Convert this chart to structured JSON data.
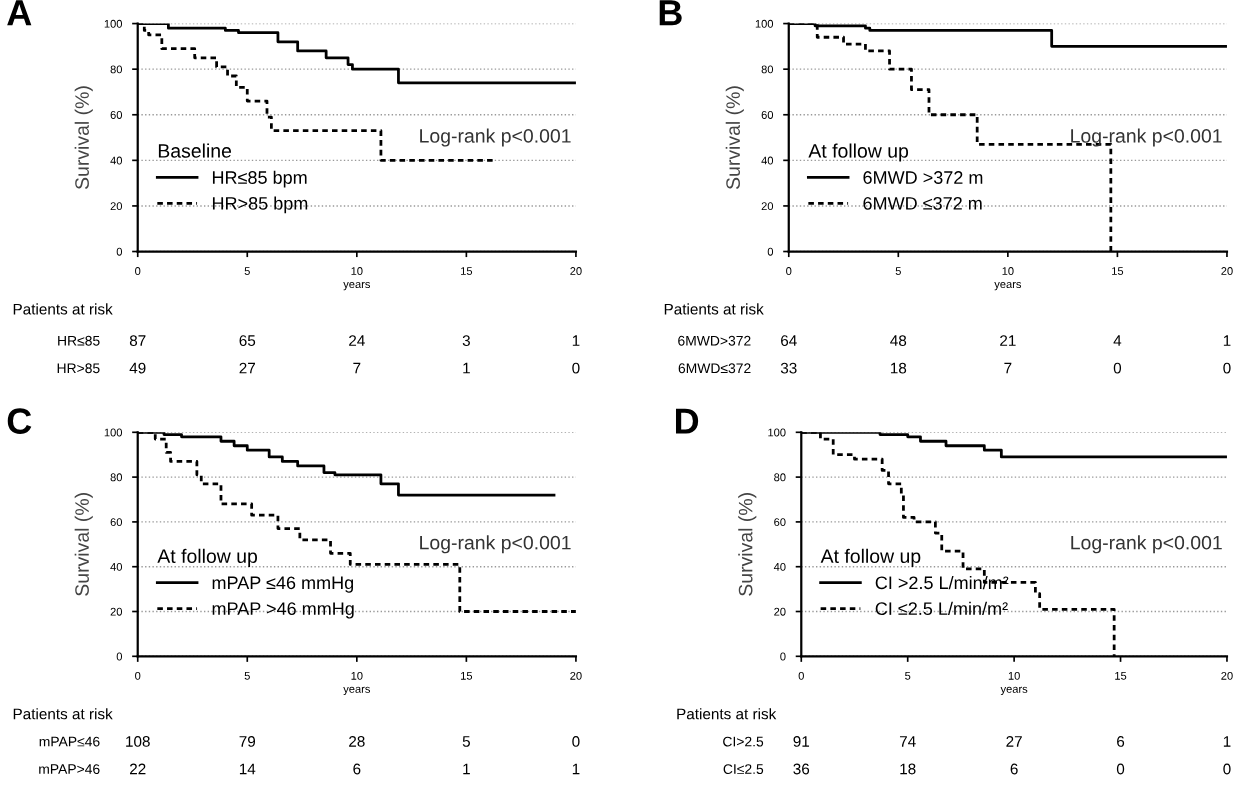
{
  "chart_data": [
    {
      "type": "step",
      "title": "A",
      "xlabel": "years",
      "ylabel": "Survival (%)",
      "legend_title": "Baseline",
      "legend": "bottom left",
      "grid": "y",
      "xlim": [
        0,
        20
      ],
      "xticks": [
        0,
        5,
        10,
        15,
        20
      ],
      "ylim": [
        0,
        100
      ],
      "yticks": [
        0,
        20,
        40,
        60,
        80,
        100
      ],
      "series": [
        {
          "name": "HR≤85 bpm",
          "color": "#000000",
          "line_style": "solid",
          "x": [
            0,
            1.4,
            4.0,
            4.6,
            6.4,
            7.3,
            8.6,
            9.6,
            9.8,
            11.9,
            20
          ],
          "values": [
            100,
            98,
            97,
            96,
            92,
            88,
            85,
            82,
            80,
            74,
            74
          ]
        },
        {
          "name": "HR>85 bpm",
          "color": "#000000",
          "line_style": "dashed",
          "x": [
            0,
            0.3,
            0.5,
            1.1,
            2.6,
            3.6,
            4.1,
            4.5,
            5.0,
            5.9,
            6.1,
            11.1,
            16.3
          ],
          "values": [
            100,
            97,
            95,
            89,
            85,
            81,
            77,
            72,
            66,
            59,
            53,
            40,
            40
          ]
        }
      ],
      "annotations": [
        "Log-rank p<0.001",
        "Patients at risk",
        "HR≤85",
        "87",
        "65",
        "24",
        "3",
        "1",
        "HR>85",
        "49",
        "27",
        "7",
        "1",
        "0"
      ]
    },
    {
      "type": "step",
      "title": "B",
      "xlabel": "years",
      "ylabel": "Survival (%)",
      "legend_title": "At follow up",
      "legend": "bottom left",
      "grid": "y",
      "xlim": [
        0,
        20
      ],
      "xticks": [
        0,
        5,
        10,
        15,
        20
      ],
      "ylim": [
        0,
        100
      ],
      "yticks": [
        0,
        20,
        40,
        60,
        80,
        100
      ],
      "series": [
        {
          "name": "6MWD >372 m",
          "color": "#000000",
          "line_style": "solid",
          "x": [
            0,
            1.2,
            3.5,
            3.7,
            12.0,
            20
          ],
          "values": [
            100,
            99,
            98,
            97,
            90,
            90
          ]
        },
        {
          "name": "6MWD ≤372 m",
          "color": "#000000",
          "line_style": "dashed",
          "x": [
            0,
            1.3,
            2.5,
            3.5,
            4.6,
            5.6,
            6.4,
            8.6,
            14.7
          ],
          "values": [
            100,
            94,
            91,
            88,
            80,
            71,
            60,
            47,
            0
          ]
        }
      ],
      "annotations": [
        "Log-rank p<0.001",
        "Patients at risk",
        "6MWD>372",
        "64",
        "48",
        "21",
        "4",
        "1",
        "6MWD≤372",
        "33",
        "18",
        "7",
        "0",
        "0"
      ]
    },
    {
      "type": "step",
      "title": "C",
      "xlabel": "years",
      "ylabel": "Survival (%)",
      "legend_title": "At follow up",
      "legend": "bottom left",
      "grid": "y",
      "xlim": [
        0,
        20
      ],
      "xticks": [
        0,
        5,
        10,
        15,
        20
      ],
      "ylim": [
        0,
        100
      ],
      "yticks": [
        0,
        20,
        40,
        60,
        80,
        100
      ],
      "series": [
        {
          "name": "mPAP ≤46 mmHg",
          "color": "#000000",
          "line_style": "solid",
          "x": [
            0,
            1.2,
            2.0,
            3.8,
            4.4,
            5.0,
            6.0,
            6.6,
            7.3,
            8.5,
            9.0,
            11.1,
            11.9,
            19.0
          ],
          "values": [
            100,
            99,
            98,
            96,
            94,
            92,
            89,
            87,
            85,
            82,
            81,
            77,
            72,
            72
          ]
        },
        {
          "name": "mPAP >46 mmHg",
          "color": "#000000",
          "line_style": "dashed",
          "x": [
            0,
            0.8,
            1.3,
            1.5,
            2.7,
            2.9,
            3.8,
            5.2,
            6.4,
            7.4,
            8.8,
            9.7,
            14.7,
            20
          ],
          "values": [
            100,
            97,
            91,
            87,
            81,
            77,
            68,
            63,
            57,
            52,
            46,
            41,
            20,
            20
          ]
        }
      ],
      "annotations": [
        "Log-rank p<0.001",
        "Patients at risk",
        "mPAP≤46",
        "108",
        "79",
        "28",
        "5",
        "0",
        "mPAP>46",
        "22",
        "14",
        "6",
        "1",
        "1"
      ]
    },
    {
      "type": "step",
      "title": "D",
      "xlabel": "years",
      "ylabel": "Survival (%)",
      "legend_title": "At follow up",
      "legend": "bottom left",
      "grid": "y",
      "xlim": [
        0,
        20
      ],
      "xticks": [
        0,
        5,
        10,
        15,
        20
      ],
      "ylim": [
        0,
        100
      ],
      "yticks": [
        0,
        20,
        40,
        60,
        80,
        100
      ],
      "series": [
        {
          "name": "CI >2.5 L/min/m²",
          "color": "#000000",
          "line_style": "solid",
          "x": [
            0,
            3.7,
            5.0,
            5.6,
            6.8,
            8.6,
            9.4,
            20
          ],
          "values": [
            100,
            99,
            98,
            96,
            94,
            92,
            89,
            89
          ]
        },
        {
          "name": "CI ≤2.5 L/min/m²",
          "color": "#000000",
          "line_style": "dashed",
          "x": [
            0,
            0.9,
            1.5,
            2.5,
            3.8,
            4.1,
            4.7,
            4.8,
            5.3,
            6.3,
            6.6,
            7.6,
            8.6,
            11.0,
            11.2,
            14.7
          ],
          "values": [
            100,
            97,
            90,
            88,
            83,
            77,
            72,
            62,
            60,
            55,
            47,
            39,
            33,
            28,
            21,
            0
          ]
        }
      ],
      "annotations": [
        "Log-rank p<0.001",
        "Patients at risk",
        "CI>2.5",
        "91",
        "74",
        "27",
        "6",
        "1",
        "CI≤2.5",
        "36",
        "18",
        "6",
        "0",
        "0"
      ]
    }
  ]
}
